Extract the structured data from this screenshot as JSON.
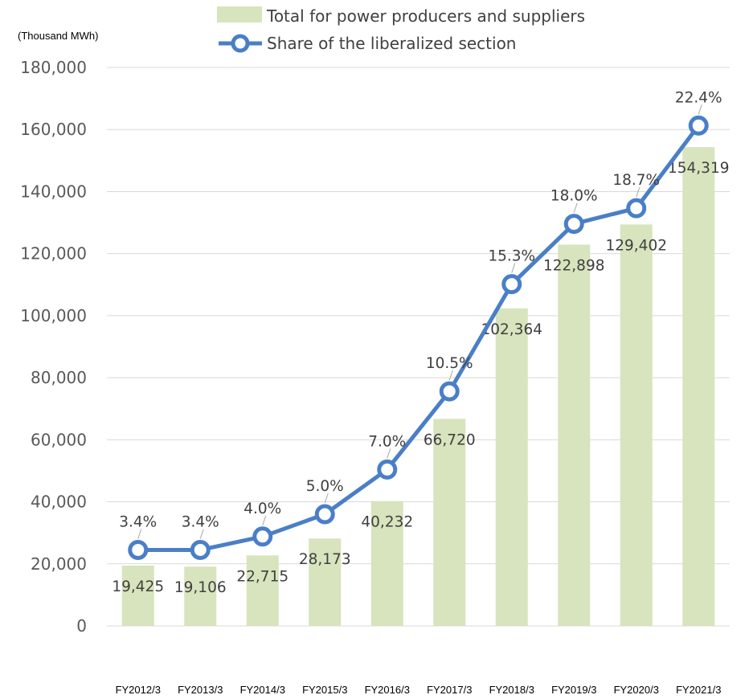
{
  "chart_data": {
    "type": "bar",
    "unit_label": "(Thousand MWh)",
    "categories": [
      "FY2012/3",
      "FY2013/3",
      "FY2014/3",
      "FY2015/3",
      "FY2016/3",
      "FY2017/3",
      "FY2018/3",
      "FY2019/3",
      "FY2020/3",
      "FY2021/3"
    ],
    "series": [
      {
        "name": "Total for power producers and suppliers",
        "type": "bar",
        "color": "#d7e4bd",
        "values": [
          19425,
          19106,
          22715,
          28173,
          40232,
          66720,
          102364,
          122898,
          129402,
          154319
        ],
        "labels": [
          "19,425",
          "19,106",
          "22,715",
          "28,173",
          "40,232",
          "66,720",
          "102,364",
          "122,898",
          "129,402",
          "154,319"
        ]
      },
      {
        "name": "Share of the liberalized section",
        "type": "line",
        "color": "#4a7fc7",
        "values": [
          3.4,
          3.4,
          4.0,
          5.0,
          7.0,
          10.5,
          15.3,
          18.0,
          18.7,
          22.4
        ],
        "labels": [
          "3.4%",
          "3.4%",
          "4.0%",
          "5.0%",
          "7.0%",
          "10.5%",
          "15.3%",
          "18.0%",
          "18.7%",
          "22.4%"
        ]
      }
    ],
    "y_axis": {
      "min": 0,
      "max": 180000,
      "step": 20000,
      "tick_labels": [
        "0",
        "20,000",
        "40,000",
        "60,000",
        "80,000",
        "100,000",
        "120,000",
        "140,000",
        "160,000",
        "180,000"
      ]
    },
    "secondary_axis": {
      "min": 0,
      "max": 25,
      "visible": false
    },
    "grid": true,
    "legend_position": "top"
  }
}
